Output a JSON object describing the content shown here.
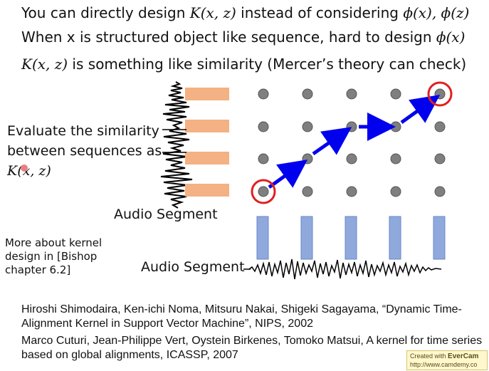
{
  "slide": {
    "line1": {
      "t1": "You can directly design ",
      "m1": "K(x, z)",
      "t2": " instead of considering ",
      "m2": "ϕ(x), ϕ(z)"
    },
    "line2": {
      "t1": "When x is structured object like sequence,  hard to design ",
      "m1": "ϕ(x)"
    },
    "line3": {
      "m1": "K(x, z)",
      "t1": " is something like similarity  (Mercer’s theory can check)"
    },
    "evaluate": {
      "t1": "Evaluate the similarity between sequences as ",
      "m1": "K(x, z)"
    },
    "audio_segment_left": "Audio Segment",
    "audio_segment_bottom": "Audio Segment",
    "more_about": "More about kernel design in [Bishop chapter 6.2]",
    "references": [
      "Hiroshi Shimodaira, Ken-ichi Noma, Mitsuru Nakai, Shigeki Sagayama, “Dynamic Time-Alignment Kernel in Support Vector Machine”, NIPS, 2002",
      "Marco Cuturi, Jean-Philippe Vert, Oystein Birkenes, Tomoko Matsui, A kernel for time series based on global alignments, ICASSP, 2007"
    ]
  },
  "watermark": {
    "prefix": "Created with ",
    "brand": "EverCam",
    "url": "http://www.camdemy.co"
  },
  "colors": {
    "segment_orange": "#f4b183",
    "segment_blue": "#8fa9dc",
    "grid_dot": "#7f7f7f",
    "path_arrow": "#0000ee",
    "circle_red": "#e02020"
  }
}
